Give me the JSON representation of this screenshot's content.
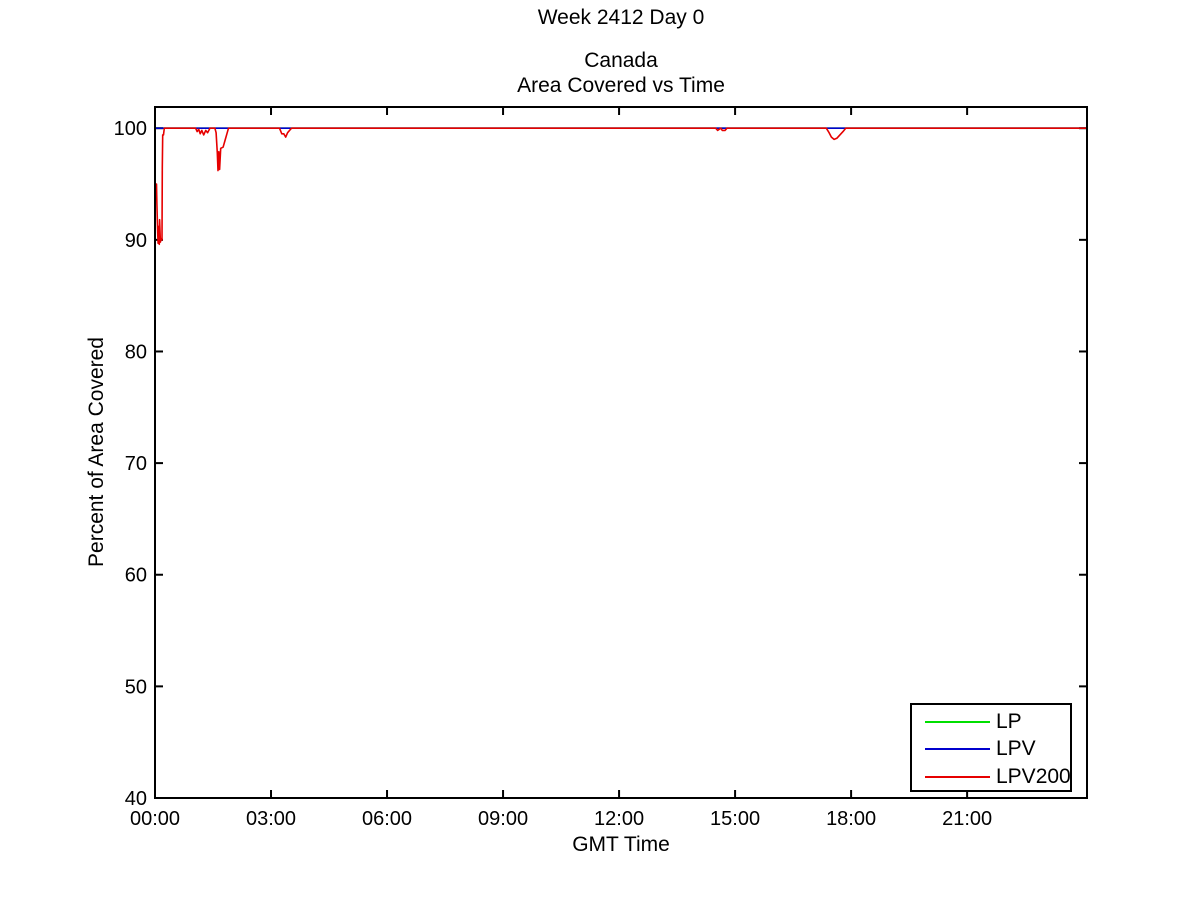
{
  "chart_data": {
    "type": "line",
    "figure_title": "Week 2412 Day 0",
    "title_lines": [
      "Canada",
      "Area Covered vs Time"
    ],
    "xlabel": "GMT Time",
    "ylabel": "Percent of Area Covered",
    "xlim": [
      0,
      24.1
    ],
    "ylim": [
      40,
      101.9
    ],
    "grid": false,
    "legend_position": "bottom-right",
    "background_color": "#ffffff",
    "axis_color": "#000000",
    "x_ticks": {
      "values": [
        0,
        3,
        6,
        9,
        12,
        15,
        18,
        21
      ],
      "labels": [
        "00:00",
        "03:00",
        "06:00",
        "09:00",
        "12:00",
        "15:00",
        "18:00",
        "21:00"
      ]
    },
    "y_ticks": {
      "values": [
        40,
        50,
        60,
        70,
        80,
        90,
        100
      ],
      "labels": [
        "40",
        "50",
        "60",
        "70",
        "80",
        "90",
        "100"
      ]
    },
    "series": [
      {
        "name": "LP",
        "color": "#00df00",
        "points": [
          [
            0,
            100
          ],
          [
            24.1,
            100
          ]
        ]
      },
      {
        "name": "LPV",
        "color": "#0000cd",
        "points": [
          [
            0,
            100
          ],
          [
            24.1,
            100
          ]
        ]
      },
      {
        "name": "LPV200",
        "color": "#e60000",
        "points": [
          [
            0.0,
            95.2
          ],
          [
            0.02,
            94.1
          ],
          [
            0.04,
            95.0
          ],
          [
            0.05,
            93.2
          ],
          [
            0.07,
            90.6
          ],
          [
            0.08,
            89.7
          ],
          [
            0.09,
            91.2
          ],
          [
            0.11,
            89.6
          ],
          [
            0.12,
            91.8
          ],
          [
            0.14,
            89.8
          ],
          [
            0.16,
            90.1
          ],
          [
            0.18,
            90.0
          ],
          [
            0.19,
            96.5
          ],
          [
            0.2,
            99.4
          ],
          [
            0.22,
            99.4
          ],
          [
            0.24,
            100
          ],
          [
            1.05,
            100
          ],
          [
            1.09,
            99.7
          ],
          [
            1.13,
            99.9
          ],
          [
            1.17,
            99.5
          ],
          [
            1.21,
            99.8
          ],
          [
            1.26,
            99.4
          ],
          [
            1.31,
            99.8
          ],
          [
            1.36,
            99.6
          ],
          [
            1.42,
            100
          ],
          [
            1.55,
            100
          ],
          [
            1.58,
            99.6
          ],
          [
            1.61,
            97.8
          ],
          [
            1.63,
            96.2
          ],
          [
            1.65,
            97.9
          ],
          [
            1.67,
            96.3
          ],
          [
            1.7,
            98.2
          ],
          [
            1.76,
            98.3
          ],
          [
            1.81,
            98.9
          ],
          [
            1.86,
            99.5
          ],
          [
            1.9,
            100
          ],
          [
            3.22,
            100
          ],
          [
            3.28,
            99.5
          ],
          [
            3.33,
            99.5
          ],
          [
            3.38,
            99.2
          ],
          [
            3.43,
            99.6
          ],
          [
            3.48,
            99.8
          ],
          [
            3.53,
            100
          ],
          [
            14.5,
            100
          ],
          [
            14.55,
            99.8
          ],
          [
            14.63,
            100
          ],
          [
            14.67,
            99.8
          ],
          [
            14.74,
            99.8
          ],
          [
            14.79,
            100
          ],
          [
            17.36,
            100
          ],
          [
            17.43,
            99.6
          ],
          [
            17.49,
            99.2
          ],
          [
            17.56,
            99.0
          ],
          [
            17.63,
            99.1
          ],
          [
            17.71,
            99.4
          ],
          [
            17.79,
            99.7
          ],
          [
            17.86,
            100
          ],
          [
            24.1,
            100
          ]
        ]
      }
    ]
  }
}
